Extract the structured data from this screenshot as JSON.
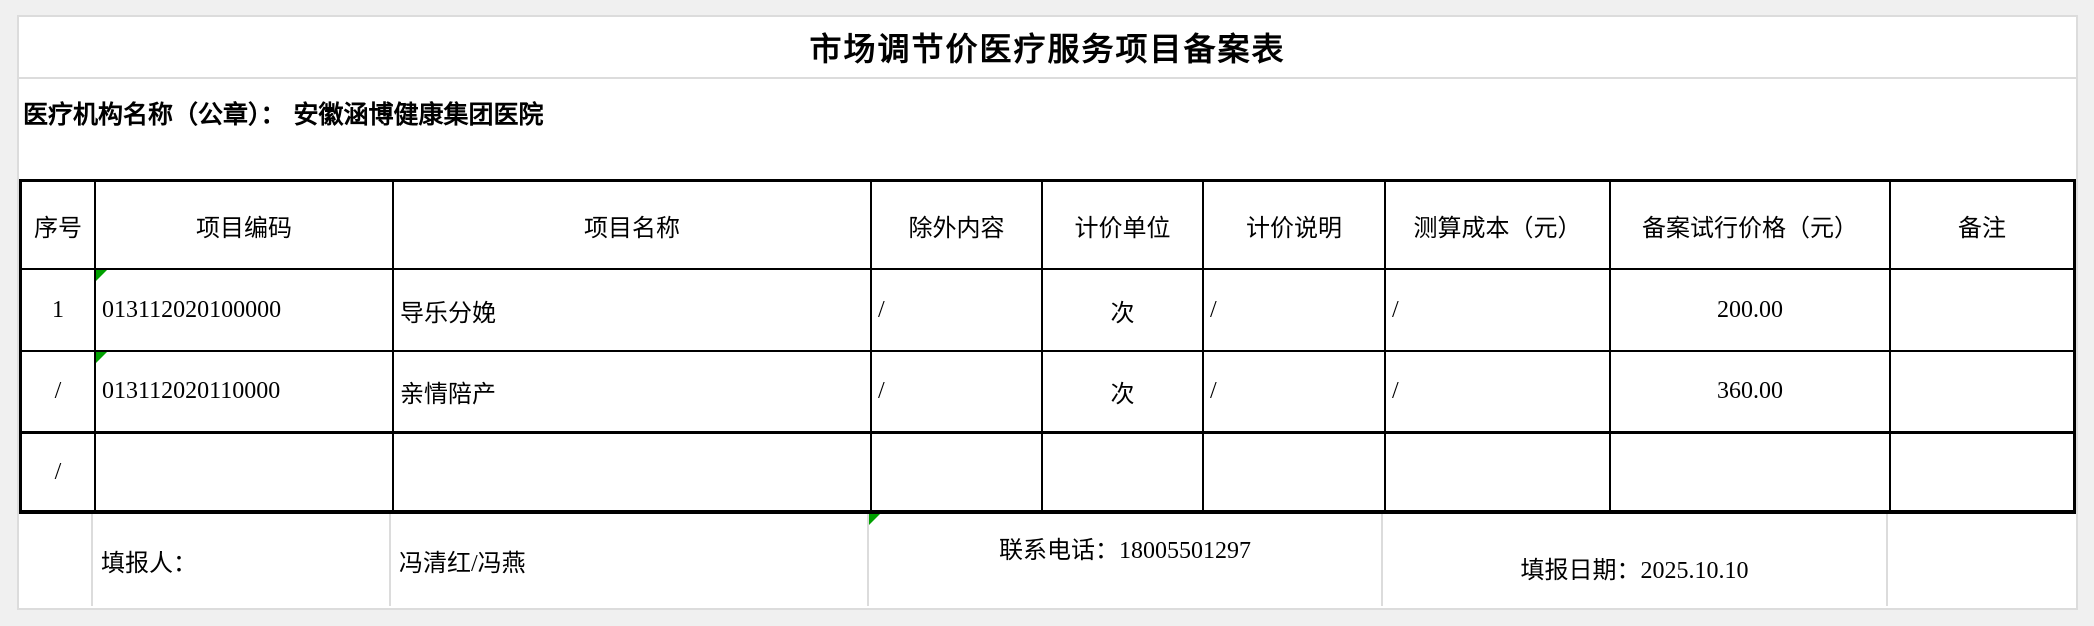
{
  "title": "市场调节价医疗服务项目备案表",
  "org_line": {
    "label": "医疗机构名称（公章）：",
    "value": "安徽涵博健康集团医院"
  },
  "table": {
    "headers": [
      "序号",
      "项目编码",
      "项目名称",
      "除外内容",
      "计价单位",
      "计价说明",
      "测算成本（元）",
      "备案试行价格（元）",
      "备注"
    ],
    "rows": [
      {
        "seq": "1",
        "code": "013112020100000",
        "name": "导乐分娩",
        "excluded": "/",
        "unit": "次",
        "pricing_note": "/",
        "cost": "/",
        "price": "200.00",
        "remark": ""
      },
      {
        "seq": "/",
        "code": "013112020110000",
        "name": "亲情陪产",
        "excluded": "/",
        "unit": "次",
        "pricing_note": "/",
        "cost": "/",
        "price": "360.00",
        "remark": ""
      },
      {
        "seq": "/",
        "code": "",
        "name": "",
        "excluded": "",
        "unit": "",
        "pricing_note": "",
        "cost": "",
        "price": "",
        "remark": ""
      }
    ]
  },
  "footer": {
    "filler_label": "填报人：",
    "filler_value": "冯清红/冯燕",
    "phone": "联系电话：18005501297",
    "date": "填报日期：2025.10.10"
  },
  "colors": {
    "heavy_border": "#000000",
    "light_border": "#dcdcdc",
    "error_triangle_green": "#00A000",
    "sheet_background": "#ffffff",
    "page_background": "#f0f0f0"
  }
}
